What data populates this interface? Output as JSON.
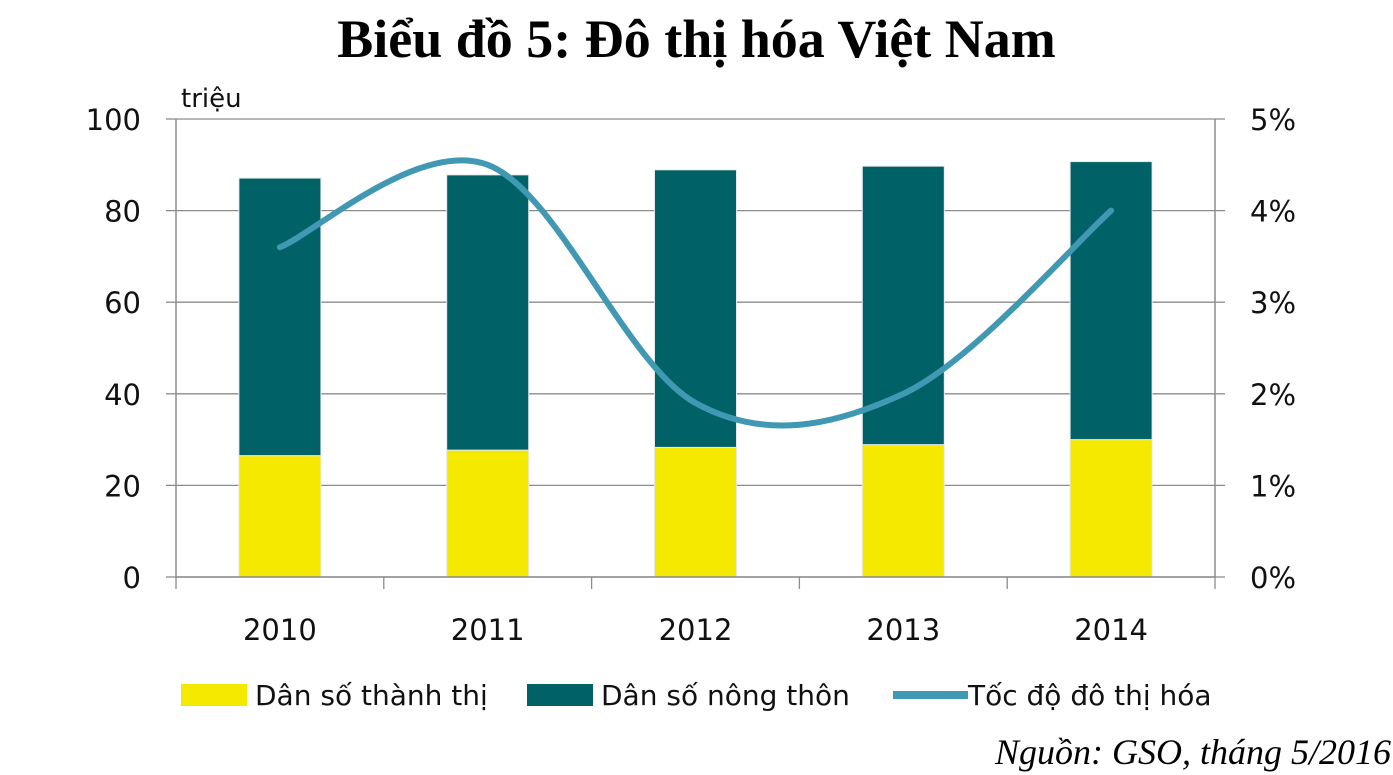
{
  "title": "Biểu đồ 5: Đô thị hóa Việt Nam",
  "source": "Nguồn: GSO, tháng 5/2016",
  "chart_data": {
    "type": "bar",
    "stacked": true,
    "categories": [
      "2010",
      "2011",
      "2012",
      "2013",
      "2014"
    ],
    "series": [
      {
        "name": "Dân số thành thị",
        "axis": "left",
        "color": "#f5e900",
        "values": [
          26.5,
          27.7,
          28.3,
          28.9,
          30.0
        ]
      },
      {
        "name": "Dân số nông thôn",
        "axis": "left",
        "color": "#006266",
        "values": [
          60.6,
          60.1,
          60.6,
          60.8,
          60.7
        ]
      },
      {
        "name": "Tốc độ đô thị hóa",
        "type": "line",
        "axis": "right",
        "color": "#4198b3",
        "values": [
          3.6,
          4.5,
          1.9,
          2.0,
          4.0
        ]
      }
    ],
    "y_left": {
      "label": "triệu",
      "range": [
        0,
        100
      ],
      "ticks": [
        "0",
        "20",
        "40",
        "60",
        "80",
        "100"
      ]
    },
    "y_right": {
      "range": [
        0,
        5
      ],
      "ticks": [
        "0%",
        "1%",
        "2%",
        "3%",
        "4%",
        "5%"
      ]
    },
    "grid": true,
    "legend_position": "bottom"
  }
}
